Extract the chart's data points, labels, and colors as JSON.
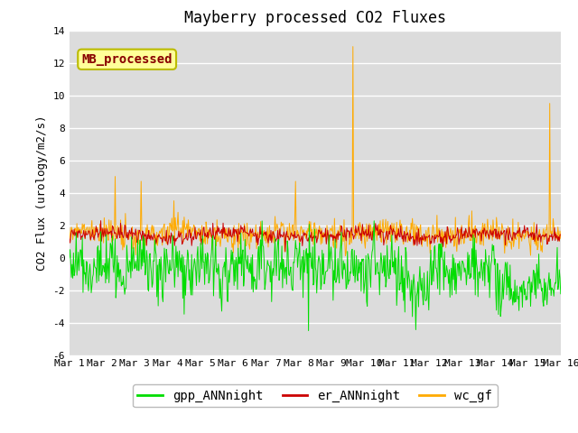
{
  "title": "Mayberry processed CO2 Fluxes",
  "ylabel": "CO2 Flux (urology/m2/s)",
  "xlabel": "",
  "ylim": [
    -6,
    14
  ],
  "yticks": [
    -6,
    -4,
    -2,
    0,
    2,
    4,
    6,
    8,
    10,
    12,
    14
  ],
  "bg_color": "#dcdcdc",
  "fig_bg": "#ffffff",
  "series_colors": {
    "gpp_ANNnight": "#00dd00",
    "er_ANNnight": "#cc0000",
    "wc_gf": "#ffaa00"
  },
  "legend_label": "MB_processed",
  "legend_text_color": "#880000",
  "legend_box_color": "#ffff99",
  "legend_box_edge": "#bbbb00",
  "n_days": 15,
  "points_per_day": 48,
  "title_fontsize": 12,
  "axis_fontsize": 9,
  "tick_fontsize": 8,
  "legend_fontsize": 10
}
